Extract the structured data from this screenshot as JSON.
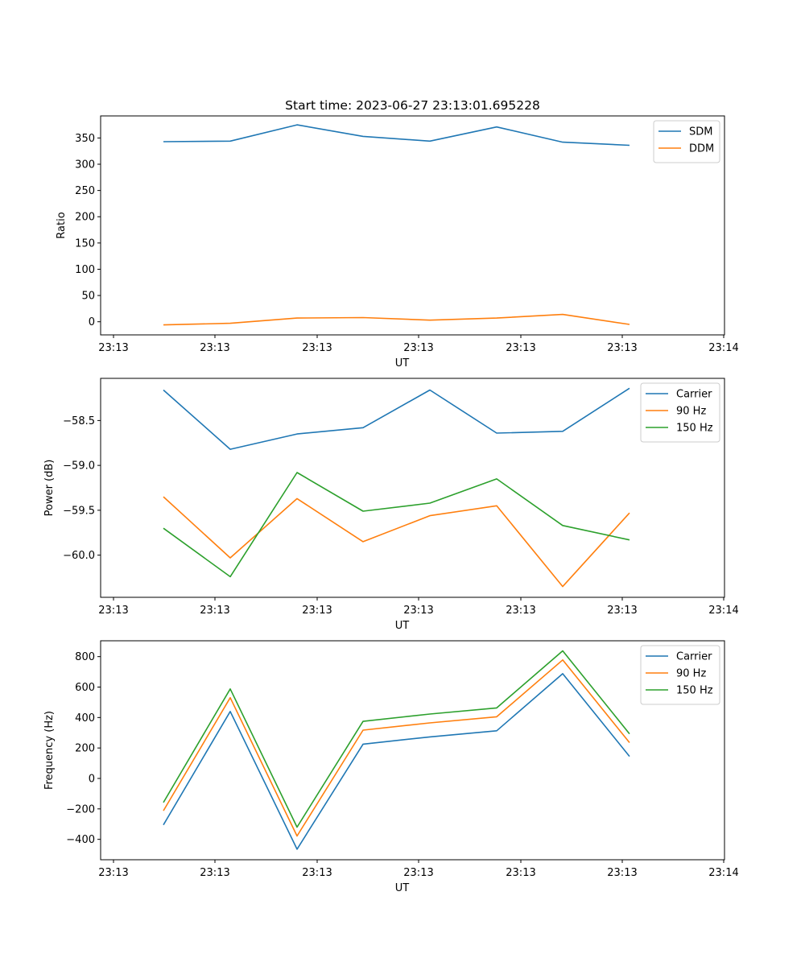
{
  "title": "Start time: 2023-06-27 23:13:01.695228",
  "colors": {
    "blue": "#1f77b4",
    "orange": "#ff7f0e",
    "green": "#2ca02c"
  },
  "chart_data": [
    {
      "type": "line",
      "title": "Start time: 2023-06-27 23:13:01.695228",
      "xlabel": "UT",
      "ylabel": "Ratio",
      "x_tick_labels": [
        "23:13",
        "23:13",
        "23:13",
        "23:13",
        "23:13",
        "23:13",
        "23:13"
      ],
      "y_ticks": [
        0,
        50,
        100,
        150,
        200,
        250,
        300,
        350
      ],
      "ylim": [
        -25,
        392
      ],
      "legend_position": "top-right",
      "series": [
        {
          "name": "SDM",
          "color": "#1f77b4",
          "values": [
            343,
            344,
            375,
            353,
            344,
            371,
            342,
            336
          ]
        },
        {
          "name": "DDM",
          "color": "#ff7f0e",
          "values": [
            -6,
            -3,
            7,
            8,
            3,
            7,
            14,
            -5
          ]
        }
      ]
    },
    {
      "type": "line",
      "xlabel": "UT",
      "ylabel": "Power (dB)",
      "x_tick_labels": [
        "23:13",
        "23:13",
        "23:13",
        "23:13",
        "23:13",
        "23:13",
        "23:13"
      ],
      "y_ticks": [
        -58.5,
        -59.0,
        -59.5,
        -60.0
      ],
      "y_tick_labels": [
        "−58.5",
        "−59.0",
        "−59.5",
        "−60.0"
      ],
      "ylim": [
        -60.47,
        -58.03
      ],
      "legend_position": "top-right",
      "series": [
        {
          "name": "Carrier",
          "color": "#1f77b4",
          "values": [
            -58.16,
            -58.82,
            -58.65,
            -58.58,
            -58.16,
            -58.64,
            -58.62,
            -58.14
          ]
        },
        {
          "name": "90 Hz",
          "color": "#ff7f0e",
          "values": [
            -59.35,
            -60.03,
            -59.37,
            -59.85,
            -59.56,
            -59.45,
            -60.35,
            -59.53
          ]
        },
        {
          "name": "150 Hz",
          "color": "#2ca02c",
          "values": [
            -59.7,
            -60.24,
            -59.08,
            -59.51,
            -59.42,
            -59.15,
            -59.67,
            -59.83
          ]
        }
      ]
    },
    {
      "type": "line",
      "xlabel": "UT",
      "ylabel": "Frequency (Hz)",
      "x_tick_labels": [
        "23:13",
        "23:13",
        "23:13",
        "23:13",
        "23:13",
        "23:13",
        "23:13"
      ],
      "y_ticks": [
        800,
        600,
        400,
        200,
        0,
        -200,
        -400
      ],
      "y_tick_labels": [
        "800",
        "600",
        "400",
        "200",
        "0",
        "−200",
        "−400"
      ],
      "ylim": [
        -534,
        904
      ],
      "legend_position": "top-right",
      "series": [
        {
          "name": "Carrier",
          "color": "#1f77b4",
          "values": [
            -305,
            440,
            -465,
            225,
            273,
            313,
            688,
            145
          ]
        },
        {
          "name": "90 Hz",
          "color": "#ff7f0e",
          "values": [
            -212,
            530,
            -378,
            317,
            365,
            405,
            778,
            235
          ]
        },
        {
          "name": "150 Hz",
          "color": "#2ca02c",
          "values": [
            -158,
            588,
            -320,
            375,
            423,
            463,
            838,
            293
          ]
        }
      ]
    }
  ],
  "x_last_tick_label": "23:14"
}
